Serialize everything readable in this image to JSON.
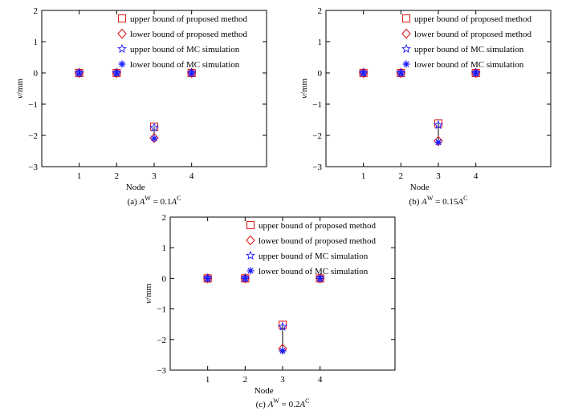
{
  "colors": {
    "upper_proposed": "#e02020",
    "lower_proposed": "#e02020",
    "mc": "#1a1aff",
    "interval_line": "#000000"
  },
  "legend": {
    "upper_proposed": "upper bound of proposed method",
    "lower_proposed": "lower bound of proposed method",
    "upper_mc": "upper bound of  MC simulation",
    "lower_mc": "lower bound of  MC simulation"
  },
  "chart_data": [
    {
      "type": "scatter",
      "caption": {
        "prefix": "(a) ",
        "a": "A",
        "sup1": "W",
        "mid": " = 0.1",
        "b": "A",
        "sup2": "C"
      },
      "xlabel": "Node",
      "ylabel": {
        "italic": "v",
        "rest": "/mm"
      },
      "x_ticks": [
        1,
        2,
        3,
        4
      ],
      "xlim": [
        0,
        6
      ],
      "ylim": [
        -3,
        2
      ],
      "y_ticks": [
        -3,
        -2,
        -1,
        0,
        1,
        2
      ],
      "y_tick_labels": [
        "−3",
        "−2",
        "−1",
        "0",
        "1",
        "2"
      ],
      "x": [
        1,
        2,
        3,
        4
      ],
      "series": [
        {
          "key": "upper_proposed",
          "marker": "square",
          "values": [
            0,
            0,
            -1.72,
            0
          ]
        },
        {
          "key": "lower_proposed",
          "marker": "diamond",
          "values": [
            0,
            0,
            -2.08,
            0
          ]
        },
        {
          "key": "upper_mc",
          "marker": "star",
          "values": [
            0,
            0,
            -1.75,
            0
          ]
        },
        {
          "key": "lower_mc",
          "marker": "asterisk",
          "values": [
            0,
            0,
            -2.1,
            0
          ]
        }
      ]
    },
    {
      "type": "scatter",
      "caption": {
        "prefix": "(b) ",
        "a": "A",
        "sup1": "W",
        "mid": " = 0.15",
        "b": "A",
        "sup2": "C"
      },
      "xlabel": "Node",
      "ylabel": {
        "italic": "v",
        "rest": "/mm"
      },
      "x_ticks": [
        1,
        2,
        3,
        4
      ],
      "xlim": [
        0,
        6
      ],
      "ylim": [
        -3,
        2
      ],
      "y_ticks": [
        -3,
        -2,
        -1,
        0,
        1,
        2
      ],
      "y_tick_labels": [
        "−3",
        "−2",
        "−1",
        "0",
        "1",
        "2"
      ],
      "x": [
        1,
        2,
        3,
        4
      ],
      "series": [
        {
          "key": "upper_proposed",
          "marker": "square",
          "values": [
            0,
            0,
            -1.62,
            0
          ]
        },
        {
          "key": "lower_proposed",
          "marker": "diamond",
          "values": [
            0,
            0,
            -2.18,
            0
          ]
        },
        {
          "key": "upper_mc",
          "marker": "star",
          "values": [
            0,
            0,
            -1.67,
            0
          ]
        },
        {
          "key": "lower_mc",
          "marker": "asterisk",
          "values": [
            0,
            0,
            -2.22,
            0
          ]
        }
      ]
    },
    {
      "type": "scatter",
      "caption": {
        "prefix": "(c) ",
        "a": "A",
        "sup1": "W",
        "mid": " = 0.2",
        "b": "A",
        "sup2": "C"
      },
      "xlabel": "Node",
      "ylabel": {
        "italic": "v",
        "rest": "/mm"
      },
      "x_ticks": [
        1,
        2,
        3,
        4
      ],
      "xlim": [
        0,
        6
      ],
      "ylim": [
        -3,
        2
      ],
      "y_ticks": [
        -3,
        -2,
        -1,
        0,
        1,
        2
      ],
      "y_tick_labels": [
        "−3",
        "−2",
        "−1",
        "0",
        "1",
        "2"
      ],
      "x": [
        1,
        2,
        3,
        4
      ],
      "series": [
        {
          "key": "upper_proposed",
          "marker": "square",
          "values": [
            0,
            0,
            -1.52,
            0
          ]
        },
        {
          "key": "lower_proposed",
          "marker": "diamond",
          "values": [
            0,
            0,
            -2.3,
            0
          ]
        },
        {
          "key": "upper_mc",
          "marker": "star",
          "values": [
            0,
            0,
            -1.58,
            0
          ]
        },
        {
          "key": "lower_mc",
          "marker": "asterisk",
          "values": [
            0,
            0,
            -2.37,
            0
          ]
        }
      ]
    }
  ]
}
